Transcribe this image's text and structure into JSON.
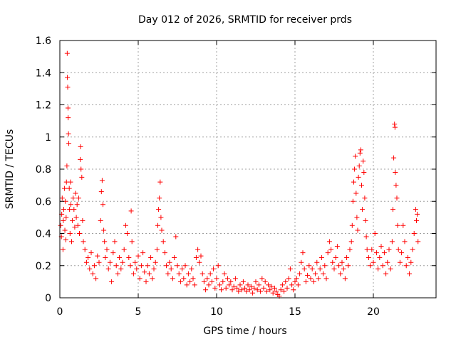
{
  "chart_data": {
    "type": "scatter",
    "title": "Day 012 of 2026, SRMTID for receiver prds",
    "xlabel": "GPS time / hours",
    "ylabel": "SRMTID / TECUs",
    "xlim": [
      0,
      24
    ],
    "ylim": [
      0,
      1.6
    ],
    "grid": true,
    "marker": "+",
    "color": "#ff0000",
    "xticks": [
      {
        "value": 0,
        "label": "0"
      },
      {
        "value": 5,
        "label": "5"
      },
      {
        "value": 10,
        "label": "10"
      },
      {
        "value": 15,
        "label": "15"
      },
      {
        "value": 20,
        "label": "20"
      }
    ],
    "yticks": [
      {
        "value": 0,
        "label": "0"
      },
      {
        "value": 0.2,
        "label": "0.2"
      },
      {
        "value": 0.4,
        "label": "0.4"
      },
      {
        "value": 0.6,
        "label": "0.6"
      },
      {
        "value": 0.8,
        "label": "0.8"
      },
      {
        "value": 1.0,
        "label": "1"
      },
      {
        "value": 1.2,
        "label": "1.2"
      },
      {
        "value": 1.4,
        "label": "1.4"
      },
      {
        "value": 1.6,
        "label": "1.6"
      }
    ],
    "series": [
      {
        "name": "SRMTID",
        "points": [
          [
            0.05,
            0.45
          ],
          [
            0.1,
            0.38
          ],
          [
            0.12,
            0.52
          ],
          [
            0.15,
            0.62
          ],
          [
            0.2,
            0.3
          ],
          [
            0.22,
            0.48
          ],
          [
            0.25,
            0.55
          ],
          [
            0.3,
            0.68
          ],
          [
            0.32,
            0.42
          ],
          [
            0.35,
            0.6
          ],
          [
            0.38,
            0.36
          ],
          [
            0.4,
            0.5
          ],
          [
            0.42,
            0.72
          ],
          [
            0.45,
            0.82
          ],
          [
            0.47,
            1.52
          ],
          [
            0.48,
            1.37
          ],
          [
            0.5,
            1.31
          ],
          [
            0.52,
            1.18
          ],
          [
            0.53,
            1.12
          ],
          [
            0.55,
            1.02
          ],
          [
            0.57,
            0.96
          ],
          [
            0.6,
            0.68
          ],
          [
            0.62,
            0.55
          ],
          [
            0.65,
            0.4
          ],
          [
            0.68,
            0.72
          ],
          [
            0.7,
            0.58
          ],
          [
            0.75,
            0.35
          ],
          [
            0.8,
            0.48
          ],
          [
            0.85,
            0.62
          ],
          [
            0.9,
            0.55
          ],
          [
            0.95,
            0.44
          ],
          [
            1.0,
            0.65
          ],
          [
            1.05,
            0.5
          ],
          [
            1.1,
            0.58
          ],
          [
            1.15,
            0.45
          ],
          [
            1.2,
            0.62
          ],
          [
            1.25,
            0.4
          ],
          [
            1.3,
            0.86
          ],
          [
            1.32,
            0.94
          ],
          [
            1.35,
            0.8
          ],
          [
            1.4,
            0.75
          ],
          [
            1.45,
            0.48
          ],
          [
            1.5,
            0.35
          ],
          [
            1.6,
            0.3
          ],
          [
            1.7,
            0.22
          ],
          [
            1.8,
            0.25
          ],
          [
            1.9,
            0.18
          ],
          [
            2.0,
            0.28
          ],
          [
            2.1,
            0.15
          ],
          [
            2.2,
            0.2
          ],
          [
            2.3,
            0.12
          ],
          [
            2.4,
            0.26
          ],
          [
            2.5,
            0.22
          ],
          [
            2.6,
            0.48
          ],
          [
            2.65,
            0.66
          ],
          [
            2.7,
            0.73
          ],
          [
            2.75,
            0.58
          ],
          [
            2.8,
            0.42
          ],
          [
            2.85,
            0.35
          ],
          [
            2.9,
            0.25
          ],
          [
            3.0,
            0.3
          ],
          [
            3.1,
            0.18
          ],
          [
            3.2,
            0.22
          ],
          [
            3.3,
            0.1
          ],
          [
            3.4,
            0.28
          ],
          [
            3.5,
            0.35
          ],
          [
            3.6,
            0.2
          ],
          [
            3.7,
            0.15
          ],
          [
            3.8,
            0.25
          ],
          [
            3.9,
            0.18
          ],
          [
            4.0,
            0.22
          ],
          [
            4.1,
            0.3
          ],
          [
            4.2,
            0.45
          ],
          [
            4.3,
            0.4
          ],
          [
            4.4,
            0.25
          ],
          [
            4.5,
            0.2
          ],
          [
            4.55,
            0.54
          ],
          [
            4.6,
            0.35
          ],
          [
            4.7,
            0.15
          ],
          [
            4.8,
            0.22
          ],
          [
            4.9,
            0.18
          ],
          [
            5.0,
            0.26
          ],
          [
            5.1,
            0.12
          ],
          [
            5.2,
            0.2
          ],
          [
            5.3,
            0.28
          ],
          [
            5.4,
            0.16
          ],
          [
            5.5,
            0.1
          ],
          [
            5.6,
            0.2
          ],
          [
            5.7,
            0.15
          ],
          [
            5.8,
            0.25
          ],
          [
            5.9,
            0.12
          ],
          [
            6.0,
            0.18
          ],
          [
            6.1,
            0.22
          ],
          [
            6.2,
            0.3
          ],
          [
            6.25,
            0.45
          ],
          [
            6.3,
            0.55
          ],
          [
            6.35,
            0.62
          ],
          [
            6.4,
            0.72
          ],
          [
            6.45,
            0.5
          ],
          [
            6.5,
            0.42
          ],
          [
            6.6,
            0.35
          ],
          [
            6.7,
            0.28
          ],
          [
            6.8,
            0.2
          ],
          [
            6.9,
            0.15
          ],
          [
            7.0,
            0.22
          ],
          [
            7.1,
            0.18
          ],
          [
            7.2,
            0.12
          ],
          [
            7.3,
            0.25
          ],
          [
            7.4,
            0.38
          ],
          [
            7.5,
            0.2
          ],
          [
            7.6,
            0.15
          ],
          [
            7.7,
            0.1
          ],
          [
            7.8,
            0.18
          ],
          [
            7.9,
            0.12
          ],
          [
            8.0,
            0.2
          ],
          [
            8.1,
            0.08
          ],
          [
            8.2,
            0.15
          ],
          [
            8.3,
            0.1
          ],
          [
            8.4,
            0.18
          ],
          [
            8.5,
            0.12
          ],
          [
            8.6,
            0.08
          ],
          [
            8.7,
            0.25
          ],
          [
            8.8,
            0.3
          ],
          [
            8.9,
            0.22
          ],
          [
            9.0,
            0.26
          ],
          [
            9.1,
            0.15
          ],
          [
            9.2,
            0.1
          ],
          [
            9.3,
            0.05
          ],
          [
            9.4,
            0.12
          ],
          [
            9.5,
            0.08
          ],
          [
            9.6,
            0.15
          ],
          [
            9.7,
            0.1
          ],
          [
            9.8,
            0.18
          ],
          [
            9.9,
            0.06
          ],
          [
            10.0,
            0.12
          ],
          [
            10.1,
            0.2
          ],
          [
            10.2,
            0.08
          ],
          [
            10.3,
            0.05
          ],
          [
            10.4,
            0.1
          ],
          [
            10.5,
            0.15
          ],
          [
            10.6,
            0.06
          ],
          [
            10.7,
            0.12
          ],
          [
            10.8,
            0.08
          ],
          [
            10.9,
            0.1
          ],
          [
            11.0,
            0.05
          ],
          [
            11.1,
            0.07
          ],
          [
            11.2,
            0.12
          ],
          [
            11.3,
            0.06
          ],
          [
            11.4,
            0.04
          ],
          [
            11.5,
            0.08
          ],
          [
            11.6,
            0.05
          ],
          [
            11.7,
            0.1
          ],
          [
            11.8,
            0.06
          ],
          [
            11.9,
            0.04
          ],
          [
            12.0,
            0.08
          ],
          [
            12.1,
            0.05
          ],
          [
            12.2,
            0.07
          ],
          [
            12.3,
            0.03
          ],
          [
            12.4,
            0.06
          ],
          [
            12.5,
            0.1
          ],
          [
            12.6,
            0.05
          ],
          [
            12.7,
            0.08
          ],
          [
            12.8,
            0.04
          ],
          [
            12.9,
            0.12
          ],
          [
            13.0,
            0.06
          ],
          [
            13.1,
            0.1
          ],
          [
            13.2,
            0.04
          ],
          [
            13.3,
            0.08
          ],
          [
            13.4,
            0.05
          ],
          [
            13.5,
            0.07
          ],
          [
            13.6,
            0.03
          ],
          [
            13.7,
            0.06
          ],
          [
            13.8,
            0.04
          ],
          [
            13.9,
            0.02
          ],
          [
            14.0,
            0.01
          ],
          [
            14.1,
            0.05
          ],
          [
            14.2,
            0.08
          ],
          [
            14.3,
            0.04
          ],
          [
            14.4,
            0.1
          ],
          [
            14.5,
            0.06
          ],
          [
            14.6,
            0.12
          ],
          [
            14.7,
            0.18
          ],
          [
            14.8,
            0.08
          ],
          [
            14.9,
            0.05
          ],
          [
            15.0,
            0.1
          ],
          [
            15.1,
            0.12
          ],
          [
            15.2,
            0.08
          ],
          [
            15.3,
            0.15
          ],
          [
            15.4,
            0.22
          ],
          [
            15.5,
            0.28
          ],
          [
            15.6,
            0.18
          ],
          [
            15.7,
            0.1
          ],
          [
            15.8,
            0.14
          ],
          [
            15.9,
            0.2
          ],
          [
            16.0,
            0.12
          ],
          [
            16.1,
            0.18
          ],
          [
            16.2,
            0.1
          ],
          [
            16.3,
            0.15
          ],
          [
            16.4,
            0.22
          ],
          [
            16.5,
            0.12
          ],
          [
            16.6,
            0.18
          ],
          [
            16.7,
            0.25
          ],
          [
            16.8,
            0.15
          ],
          [
            16.9,
            0.2
          ],
          [
            17.0,
            0.12
          ],
          [
            17.1,
            0.28
          ],
          [
            17.2,
            0.35
          ],
          [
            17.3,
            0.3
          ],
          [
            17.4,
            0.22
          ],
          [
            17.5,
            0.18
          ],
          [
            17.6,
            0.25
          ],
          [
            17.7,
            0.32
          ],
          [
            17.8,
            0.2
          ],
          [
            17.9,
            0.15
          ],
          [
            18.0,
            0.22
          ],
          [
            18.1,
            0.18
          ],
          [
            18.2,
            0.12
          ],
          [
            18.3,
            0.25
          ],
          [
            18.4,
            0.2
          ],
          [
            18.5,
            0.3
          ],
          [
            18.6,
            0.35
          ],
          [
            18.65,
            0.45
          ],
          [
            18.7,
            0.6
          ],
          [
            18.75,
            0.72
          ],
          [
            18.8,
            0.8
          ],
          [
            18.85,
            0.88
          ],
          [
            18.9,
            0.65
          ],
          [
            18.95,
            0.5
          ],
          [
            19.0,
            0.42
          ],
          [
            19.05,
            0.75
          ],
          [
            19.1,
            0.82
          ],
          [
            19.15,
            0.9
          ],
          [
            19.2,
            0.92
          ],
          [
            19.25,
            0.7
          ],
          [
            19.3,
            0.55
          ],
          [
            19.35,
            0.85
          ],
          [
            19.4,
            0.78
          ],
          [
            19.45,
            0.62
          ],
          [
            19.5,
            0.48
          ],
          [
            19.55,
            0.38
          ],
          [
            19.6,
            0.3
          ],
          [
            19.7,
            0.25
          ],
          [
            19.8,
            0.2
          ],
          [
            19.9,
            0.3
          ],
          [
            20.0,
            0.22
          ],
          [
            20.1,
            0.4
          ],
          [
            20.2,
            0.28
          ],
          [
            20.3,
            0.18
          ],
          [
            20.4,
            0.25
          ],
          [
            20.5,
            0.32
          ],
          [
            20.6,
            0.2
          ],
          [
            20.7,
            0.28
          ],
          [
            20.8,
            0.15
          ],
          [
            20.9,
            0.22
          ],
          [
            21.0,
            0.3
          ],
          [
            21.1,
            0.18
          ],
          [
            21.2,
            0.35
          ],
          [
            21.25,
            0.55
          ],
          [
            21.3,
            0.87
          ],
          [
            21.35,
            1.08
          ],
          [
            21.38,
            1.06
          ],
          [
            21.4,
            0.78
          ],
          [
            21.45,
            0.7
          ],
          [
            21.5,
            0.62
          ],
          [
            21.55,
            0.45
          ],
          [
            21.6,
            0.3
          ],
          [
            21.7,
            0.22
          ],
          [
            21.8,
            0.28
          ],
          [
            21.9,
            0.45
          ],
          [
            22.0,
            0.35
          ],
          [
            22.1,
            0.2
          ],
          [
            22.2,
            0.25
          ],
          [
            22.3,
            0.15
          ],
          [
            22.4,
            0.22
          ],
          [
            22.5,
            0.3
          ],
          [
            22.6,
            0.4
          ],
          [
            22.7,
            0.55
          ],
          [
            22.75,
            0.48
          ],
          [
            22.8,
            0.52
          ],
          [
            22.85,
            0.35
          ]
        ]
      }
    ]
  }
}
